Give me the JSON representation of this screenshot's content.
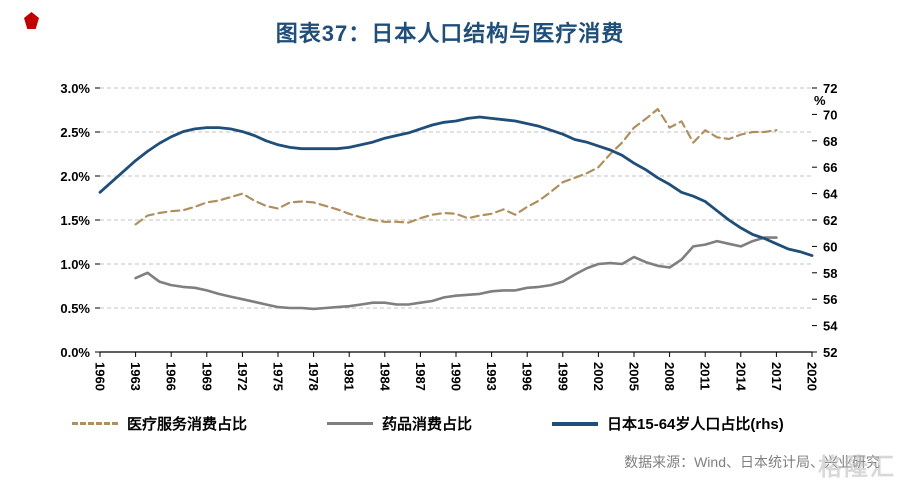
{
  "header": {
    "title": "图表37：日本人口结构与医疗消费"
  },
  "footer": {
    "source": "数据来源：Wind、日本统计局、兴业研究",
    "watermark": "格隆汇"
  },
  "icons": {
    "publisher_logo_icon": "red-pentagon-mark"
  },
  "colors": {
    "title": "#1f4e79",
    "medical_services_line": "#b08f5f",
    "pharma_line": "#7f7f7f",
    "population_line": "#1f4e79",
    "grid": "#c3c3c3",
    "source_text": "#7f7f7f"
  },
  "chart_data": {
    "type": "line",
    "title": "图表37：日本人口结构与医疗消费",
    "grid_color": "#c3c3c3",
    "x_range": [
      1960,
      2020
    ],
    "x_ticks": [
      1960,
      1963,
      1966,
      1969,
      1972,
      1975,
      1978,
      1981,
      1984,
      1987,
      1990,
      1993,
      1996,
      1999,
      2002,
      2005,
      2008,
      2011,
      2014,
      2017,
      2020
    ],
    "left_axis": {
      "min": 0,
      "max": 3,
      "tick_values": [
        3.0,
        2.5,
        2.0,
        1.5,
        1.0,
        0.5,
        0.0
      ],
      "tick_labels": [
        "3.0%",
        "2.5%",
        "2.0%",
        "1.5%",
        "1.0%",
        "0.5%",
        "0.0%"
      ]
    },
    "right_axis": {
      "min": 52,
      "max": 72,
      "unit": "%",
      "tick_values": [
        72,
        70,
        68,
        66,
        64,
        62,
        60,
        58,
        56,
        54,
        52
      ]
    },
    "legend_position": "bottom",
    "series": [
      {
        "name": "医疗服务消费占比",
        "axis": "left",
        "style": "dashed",
        "color": "#b08f5f",
        "start_year": 1963,
        "values": [
          1.45,
          1.55,
          1.58,
          1.6,
          1.61,
          1.65,
          1.7,
          1.72,
          1.76,
          1.8,
          1.72,
          1.66,
          1.63,
          1.7,
          1.71,
          1.7,
          1.66,
          1.62,
          1.57,
          1.53,
          1.5,
          1.48,
          1.48,
          1.47,
          1.52,
          1.56,
          1.58,
          1.57,
          1.52,
          1.55,
          1.57,
          1.62,
          1.56,
          1.65,
          1.72,
          1.82,
          1.93,
          1.98,
          2.03,
          2.1,
          2.25,
          2.38,
          2.55,
          2.65,
          2.76,
          2.55,
          2.62,
          2.38,
          2.52,
          2.44,
          2.42,
          2.47,
          2.5,
          2.5,
          2.52
        ]
      },
      {
        "name": "药品消费占比",
        "axis": "left",
        "style": "solid",
        "color": "#7f7f7f",
        "start_year": 1963,
        "values": [
          0.84,
          0.9,
          0.8,
          0.76,
          0.74,
          0.73,
          0.7,
          0.66,
          0.63,
          0.6,
          0.57,
          0.54,
          0.51,
          0.5,
          0.5,
          0.49,
          0.5,
          0.51,
          0.52,
          0.54,
          0.56,
          0.56,
          0.54,
          0.54,
          0.56,
          0.58,
          0.62,
          0.64,
          0.65,
          0.66,
          0.69,
          0.7,
          0.7,
          0.73,
          0.74,
          0.76,
          0.8,
          0.88,
          0.95,
          1.0,
          1.01,
          1.0,
          1.08,
          1.02,
          0.98,
          0.96,
          1.05,
          1.2,
          1.22,
          1.26,
          1.23,
          1.2,
          1.26,
          1.3,
          1.3
        ]
      },
      {
        "name": "日本15-64岁人口占比(rhs)",
        "axis": "right",
        "style": "solid",
        "color": "#1f4e79",
        "start_year": 1960,
        "values": [
          64.1,
          64.9,
          65.7,
          66.5,
          67.2,
          67.8,
          68.3,
          68.7,
          68.9,
          69.0,
          69.0,
          68.9,
          68.7,
          68.4,
          68.0,
          67.7,
          67.5,
          67.4,
          67.4,
          67.4,
          67.4,
          67.5,
          67.7,
          67.9,
          68.2,
          68.4,
          68.6,
          68.9,
          69.2,
          69.4,
          69.5,
          69.7,
          69.8,
          69.7,
          69.6,
          69.5,
          69.3,
          69.1,
          68.8,
          68.5,
          68.1,
          67.9,
          67.6,
          67.3,
          66.9,
          66.3,
          65.8,
          65.2,
          64.7,
          64.1,
          63.8,
          63.4,
          62.7,
          62.0,
          61.4,
          60.9,
          60.6,
          60.2,
          59.8,
          59.6,
          59.3
        ]
      }
    ]
  }
}
